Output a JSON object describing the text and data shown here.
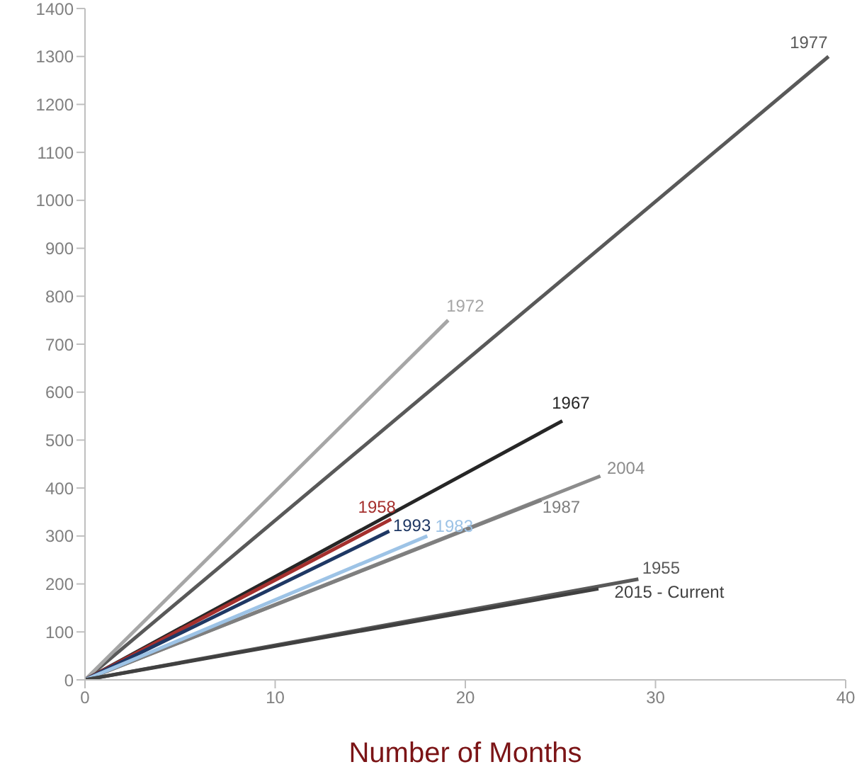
{
  "chart_data": {
    "type": "line",
    "xlabel": "Number of Months",
    "xlim": [
      0,
      40
    ],
    "xticks": [
      0,
      10,
      20,
      30,
      40
    ],
    "ylim": [
      0,
      1400
    ],
    "yticks": [
      0,
      100,
      200,
      300,
      400,
      500,
      600,
      700,
      800,
      900,
      1000,
      1100,
      1200,
      1300,
      1400
    ],
    "grid": false,
    "legend": false,
    "marker": "none",
    "series": [
      {
        "name": "1977",
        "color": "#595959",
        "x": [
          0,
          39.1
        ],
        "values": [
          0,
          1300
        ]
      },
      {
        "name": "1972",
        "color": "#a6a6a6",
        "x": [
          0,
          19.1
        ],
        "values": [
          0,
          750
        ]
      },
      {
        "name": "1967",
        "color": "#262626",
        "x": [
          0,
          25.1
        ],
        "values": [
          0,
          540
        ]
      },
      {
        "name": "2004",
        "color": "#8c8c8c",
        "x": [
          0,
          27.1
        ],
        "values": [
          0,
          425
        ]
      },
      {
        "name": "1987",
        "color": "#7f7f7f",
        "x": [
          0,
          24
        ],
        "values": [
          0,
          375
        ]
      },
      {
        "name": "1958",
        "color": "#a5302e",
        "x": [
          0,
          16.1
        ],
        "values": [
          0,
          335
        ]
      },
      {
        "name": "1993",
        "color": "#1f3864",
        "x": [
          0,
          16
        ],
        "values": [
          0,
          310
        ]
      },
      {
        "name": "1983",
        "color": "#9dc3e6",
        "x": [
          0,
          18
        ],
        "values": [
          0,
          300
        ]
      },
      {
        "name": "1955",
        "color": "#595959",
        "x": [
          0,
          29.1
        ],
        "values": [
          0,
          210
        ]
      },
      {
        "name": "2015 - Current",
        "color": "#404040",
        "x": [
          0,
          27
        ],
        "values": [
          0,
          190
        ]
      }
    ]
  }
}
